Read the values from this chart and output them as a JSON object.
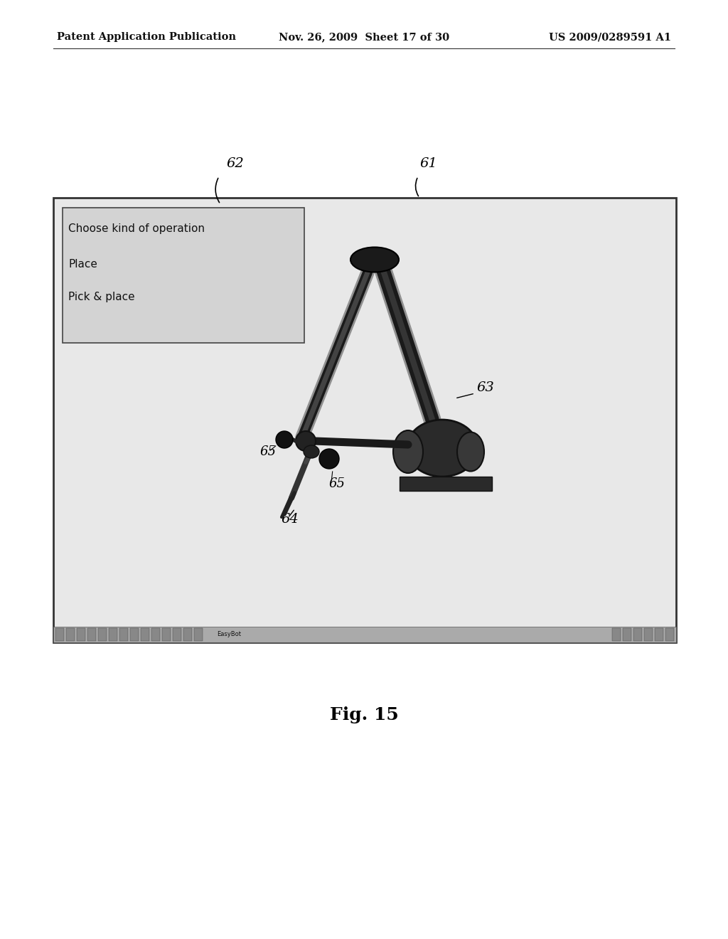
{
  "bg_color": "#ffffff",
  "header_left": "Patent Application Publication",
  "header_center": "Nov. 26, 2009  Sheet 17 of 30",
  "header_right": "US 2009/0289591 A1",
  "figure_label": "Fig. 15",
  "ref_61": "61",
  "ref_62": "62",
  "ref_63": "63",
  "ref_64": "64",
  "ref_65a": "65",
  "ref_65b": "65",
  "ui_text_line1": "Choose kind of operation",
  "ui_text_line2": "Place",
  "ui_text_line3": "Pick & place",
  "text_color": "#111111",
  "screen_border": "#333333",
  "dialog_border": "#444444",
  "taskbar_color": "#aaaaaa",
  "robot_dark": "#1a1a1a",
  "robot_mid": "#383838",
  "robot_light": "#909090"
}
